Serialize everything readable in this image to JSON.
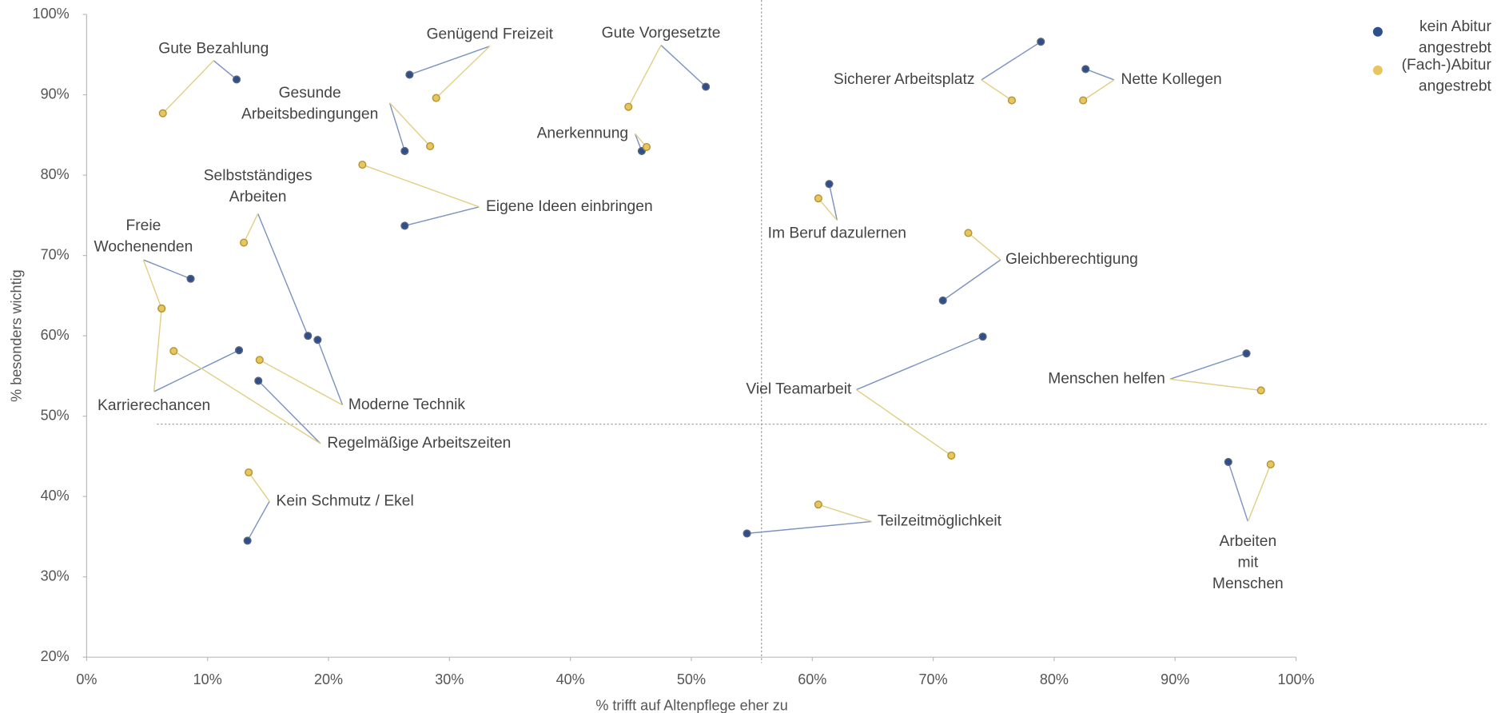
{
  "chart_data": {
    "type": "scatter",
    "x_label": "% trifft auf Altenpflege eher zu",
    "y_label": "% besonders wichtig",
    "categories": [
      [
        "Gute Bezahlung"
      ],
      [
        "Genügend Freizeit"
      ],
      [
        "Gute Vorgesetzte"
      ],
      [
        "Sicherer Arbeitsplatz"
      ],
      [
        "Nette Kollegen"
      ],
      [
        "Gesunde",
        "Arbeitsbedingungen"
      ],
      [
        "Anerkennung"
      ],
      [
        "Eigene Ideen einbringen"
      ],
      [
        "Selbstständiges",
        "Arbeiten"
      ],
      [
        "Freie",
        "Wochenenden"
      ],
      [
        "Karrierechancen"
      ],
      [
        "Regelmäßige Arbeitszeiten"
      ],
      [
        "Moderne Technik"
      ],
      [
        "Kein Schmutz / Ekel"
      ],
      [
        "Im Beruf dazulernen"
      ],
      [
        "Gleichberechtigung"
      ],
      [
        "Viel Teamarbeit"
      ],
      [
        "Menschen helfen"
      ],
      [
        "Teilzeitmöglichkeit"
      ],
      [
        "Arbeiten",
        "mit",
        "Menschen"
      ]
    ],
    "series": [
      {
        "name": [
          "kein Abitur",
          "angestrebt"
        ],
        "color": "#2E4F8C",
        "x": [
          12.4,
          26.7,
          51.2,
          78.9,
          82.6,
          26.3,
          45.9,
          26.3,
          18.3,
          8.6,
          12.6,
          14.2,
          19.1,
          13.3,
          61.4,
          70.8,
          74.1,
          95.9,
          54.6,
          94.4
        ],
        "values": [
          91.9,
          92.5,
          91.0,
          96.6,
          93.2,
          83.0,
          83.0,
          73.7,
          60.0,
          67.1,
          58.2,
          54.4,
          59.5,
          34.5,
          78.9,
          64.4,
          59.9,
          57.8,
          35.4,
          44.3
        ]
      },
      {
        "name": [
          "(Fach-)Abitur",
          "angestrebt"
        ],
        "color": "#E6C660",
        "x": [
          6.3,
          28.9,
          44.8,
          76.5,
          82.4,
          28.4,
          46.3,
          22.8,
          13.0,
          6.2,
          6.2,
          7.2,
          14.3,
          13.4,
          60.5,
          72.9,
          71.5,
          97.1,
          60.5,
          97.9
        ],
        "values": [
          87.7,
          89.6,
          88.5,
          89.3,
          89.3,
          83.6,
          83.5,
          81.3,
          71.6,
          63.4,
          63.4,
          58.1,
          57.0,
          43.0,
          77.1,
          72.8,
          45.1,
          53.2,
          39.0,
          44.0
        ]
      }
    ],
    "reference_x": 55.8,
    "reference_y": 49,
    "xlim": [
      0,
      100
    ],
    "ylim": [
      20,
      100
    ],
    "xticks": [
      {
        "value": 0,
        "label": "0%"
      },
      {
        "value": 10,
        "label": "10%"
      },
      {
        "value": 20,
        "label": "20%"
      },
      {
        "value": 30,
        "label": "30%"
      },
      {
        "value": 40,
        "label": "40%"
      },
      {
        "value": 50,
        "label": "50%"
      },
      {
        "value": 60,
        "label": "60%"
      },
      {
        "value": 70,
        "label": "70%"
      },
      {
        "value": 80,
        "label": "80%"
      },
      {
        "value": 90,
        "label": "90%"
      },
      {
        "value": 100,
        "label": "100%"
      }
    ],
    "yticks": [
      {
        "value": 20,
        "label": "20%"
      },
      {
        "value": 30,
        "label": "30%"
      },
      {
        "value": 40,
        "label": "40%"
      },
      {
        "value": 50,
        "label": "50%"
      },
      {
        "value": 60,
        "label": "60%"
      },
      {
        "value": 70,
        "label": "70%"
      },
      {
        "value": 80,
        "label": "80%"
      },
      {
        "value": 90,
        "label": "90%"
      },
      {
        "value": 100,
        "label": "100%"
      }
    ],
    "legend": "top-right"
  }
}
